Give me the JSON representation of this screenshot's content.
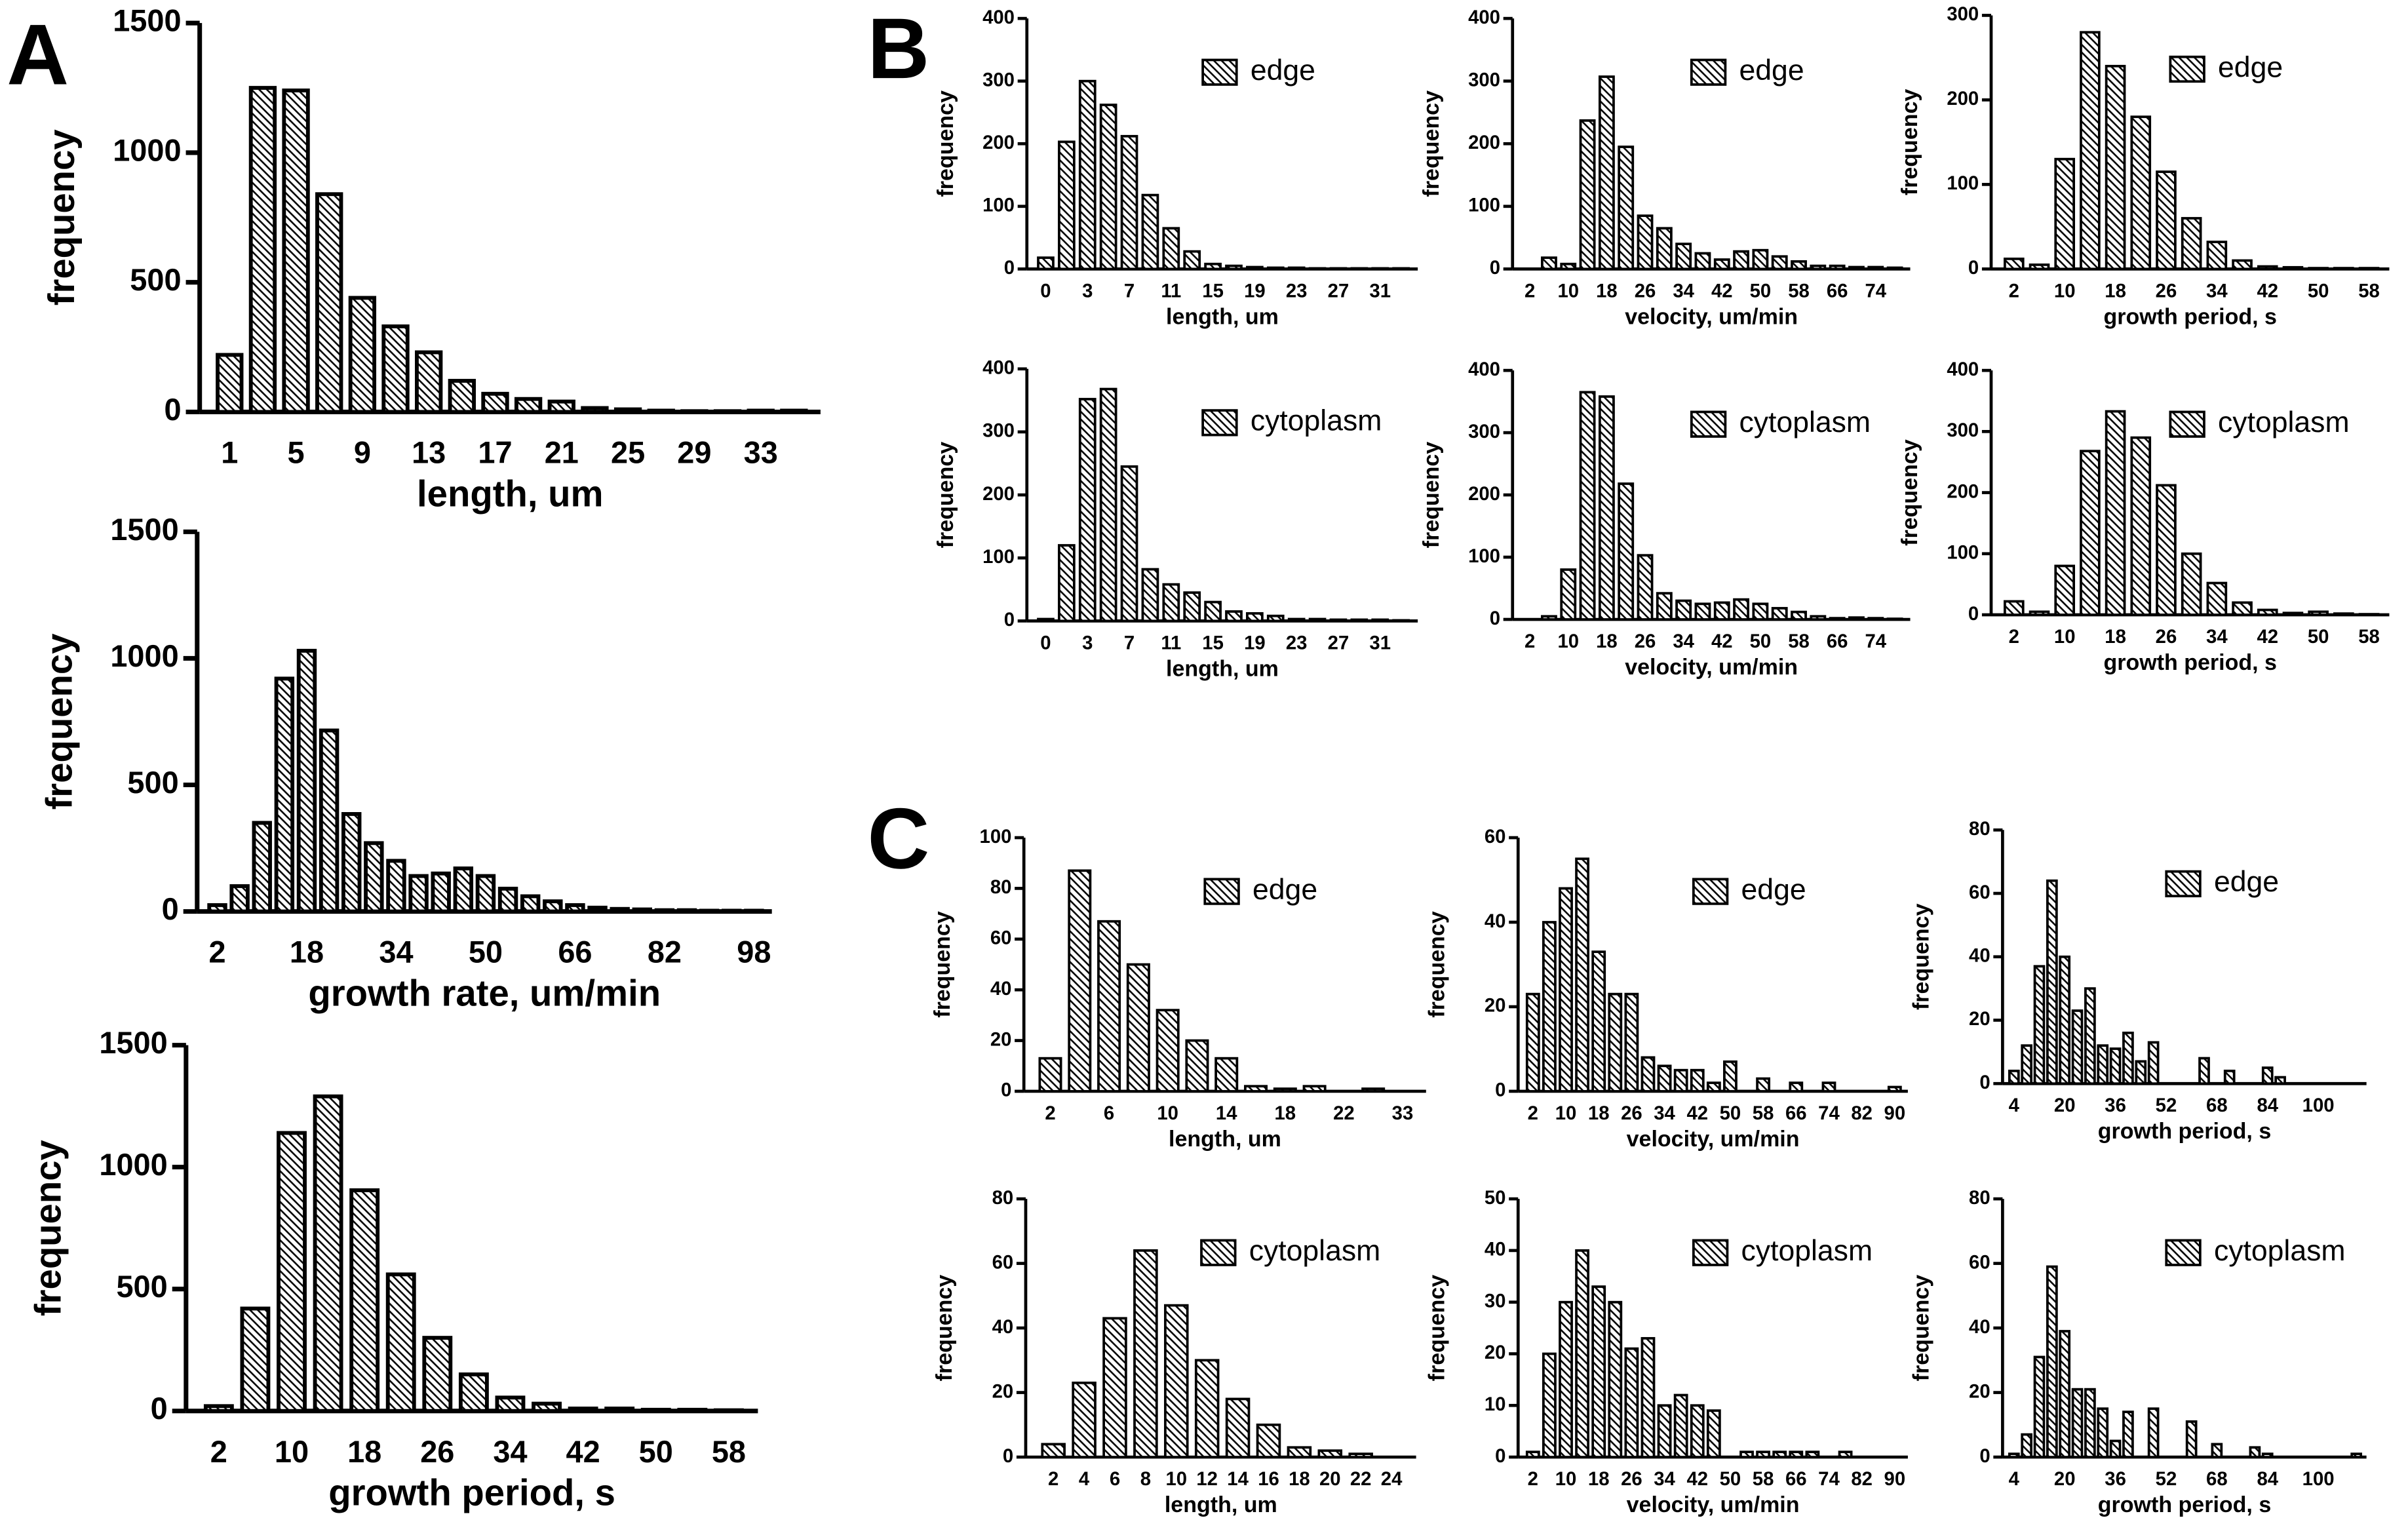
{
  "panel_labels": [
    "A",
    "B",
    "C"
  ],
  "chart_data": [
    {
      "type": "bar",
      "xlabel": "length, um",
      "ylabel": "frequency",
      "categories": [
        "1",
        null,
        "5",
        null,
        "9",
        null,
        "13",
        null,
        "17",
        null,
        "21",
        null,
        "25",
        null,
        "29",
        null,
        "33",
        null
      ],
      "values": [
        220,
        1250,
        1240,
        840,
        440,
        330,
        230,
        120,
        70,
        50,
        40,
        15,
        10,
        5,
        3,
        3,
        5,
        5
      ],
      "ylim": [
        0,
        1500
      ],
      "yticks": [
        0,
        500,
        1000,
        1500
      ]
    },
    {
      "type": "bar",
      "xlabel": "growth rate, um/min",
      "ylabel": "frequency",
      "categories": [
        "2",
        null,
        null,
        null,
        "18",
        null,
        null,
        null,
        "34",
        null,
        null,
        null,
        "50",
        null,
        null,
        null,
        "66",
        null,
        null,
        null,
        "82",
        null,
        null,
        null,
        "98"
      ],
      "values": [
        25,
        100,
        350,
        920,
        1030,
        715,
        385,
        270,
        200,
        140,
        150,
        170,
        140,
        90,
        60,
        40,
        25,
        15,
        10,
        8,
        5,
        5,
        3,
        3,
        3
      ],
      "ylim": [
        0,
        1500
      ],
      "yticks": [
        0,
        500,
        1000,
        1500
      ]
    },
    {
      "type": "bar",
      "xlabel": "growth period, s",
      "ylabel": "frequency",
      "categories": [
        "2",
        null,
        "10",
        null,
        "18",
        null,
        "26",
        null,
        "34",
        null,
        "42",
        null,
        "50",
        null,
        "58"
      ],
      "values": [
        20,
        420,
        1140,
        1290,
        905,
        560,
        300,
        150,
        55,
        30,
        10,
        10,
        5,
        5,
        3
      ],
      "ylim": [
        0,
        1500
      ],
      "yticks": [
        0,
        500,
        1000,
        1500
      ]
    },
    {
      "type": "bar",
      "xlabel": "length, um",
      "ylabel": "frequency",
      "categories": [
        "0",
        null,
        "3",
        null,
        "7",
        null,
        "11",
        null,
        "15",
        null,
        "19",
        null,
        "23",
        null,
        "27",
        null,
        "31",
        null
      ],
      "series": [
        {
          "name": "edge",
          "values": [
            18,
            203,
            300,
            262,
            212,
            118,
            65,
            28,
            8,
            5,
            3,
            2,
            2,
            1,
            1,
            1,
            1,
            1
          ]
        }
      ],
      "ylim": [
        0,
        400
      ],
      "yticks": [
        0,
        100,
        200,
        300,
        400
      ]
    },
    {
      "type": "bar",
      "xlabel": "velocity, um/min",
      "ylabel": "frequency",
      "categories": [
        "2",
        null,
        "10",
        null,
        "18",
        null,
        "26",
        null,
        "34",
        null,
        "42",
        null,
        "50",
        null,
        "58",
        null,
        "66",
        null,
        "74",
        null
      ],
      "series": [
        {
          "name": "edge",
          "values": [
            0,
            18,
            8,
            237,
            307,
            195,
            85,
            65,
            40,
            25,
            15,
            28,
            30,
            20,
            12,
            5,
            5,
            3,
            3,
            2
          ]
        }
      ],
      "ylim": [
        0,
        400
      ],
      "yticks": [
        0,
        100,
        200,
        300,
        400
      ]
    },
    {
      "type": "bar",
      "xlabel": "growth period, s",
      "ylabel": "frequency",
      "categories": [
        "2",
        null,
        "10",
        null,
        "18",
        null,
        "26",
        null,
        "34",
        null,
        "42",
        null,
        "50",
        null,
        "58"
      ],
      "series": [
        {
          "name": "edge",
          "values": [
            12,
            5,
            130,
            280,
            240,
            180,
            115,
            60,
            32,
            10,
            3,
            2,
            1,
            1,
            1
          ]
        }
      ],
      "ylim": [
        0,
        300
      ],
      "yticks": [
        0,
        100,
        200,
        300
      ]
    },
    {
      "type": "bar",
      "xlabel": "length, um",
      "ylabel": "frequency",
      "categories": [
        "0",
        null,
        "3",
        null,
        "7",
        null,
        "11",
        null,
        "15",
        null,
        "19",
        null,
        "23",
        null,
        "27",
        null,
        "31",
        null
      ],
      "series": [
        {
          "name": "cytoplasm",
          "values": [
            3,
            120,
            352,
            368,
            245,
            82,
            58,
            45,
            30,
            15,
            12,
            8,
            3,
            3,
            2,
            2,
            2,
            1
          ]
        }
      ],
      "ylim": [
        0,
        400
      ],
      "yticks": [
        0,
        100,
        200,
        300,
        400
      ]
    },
    {
      "type": "bar",
      "xlabel": "velocity, um/min",
      "ylabel": "frequency",
      "categories": [
        "2",
        null,
        "10",
        null,
        "18",
        null,
        "26",
        null,
        "34",
        null,
        "42",
        null,
        "50",
        null,
        "58",
        null,
        "66",
        null,
        "74",
        null
      ],
      "series": [
        {
          "name": "cytoplasm",
          "values": [
            0,
            5,
            80,
            365,
            358,
            218,
            103,
            42,
            30,
            25,
            27,
            32,
            25,
            18,
            12,
            5,
            2,
            3,
            2,
            1
          ]
        }
      ],
      "ylim": [
        0,
        400
      ],
      "yticks": [
        0,
        100,
        200,
        300,
        400
      ]
    },
    {
      "type": "bar",
      "xlabel": "growth period, s",
      "ylabel": "frequency",
      "categories": [
        "2",
        null,
        "10",
        null,
        "18",
        null,
        "26",
        null,
        "34",
        null,
        "42",
        null,
        "50",
        null,
        "58"
      ],
      "series": [
        {
          "name": "cytoplasm",
          "values": [
            22,
            5,
            80,
            268,
            333,
            290,
            212,
            100,
            52,
            20,
            8,
            3,
            5,
            2,
            1
          ]
        }
      ],
      "ylim": [
        0,
        400
      ],
      "yticks": [
        0,
        100,
        200,
        300,
        400
      ]
    },
    {
      "type": "bar",
      "xlabel": "length, um",
      "ylabel": "frequency",
      "categories": [
        "2",
        null,
        "6",
        null,
        "10",
        null,
        "14",
        null,
        "18",
        null,
        "22",
        null,
        "33"
      ],
      "series": [
        {
          "name": "edge",
          "values": [
            13,
            87,
            67,
            50,
            32,
            20,
            13,
            2,
            1,
            2,
            0,
            1,
            0
          ]
        }
      ],
      "ylim": [
        0,
        100
      ],
      "yticks": [
        0,
        20,
        40,
        60,
        80,
        100
      ]
    },
    {
      "type": "bar",
      "xlabel": "velocity, um/min",
      "ylabel": "frequency",
      "categories": [
        "2",
        null,
        "10",
        null,
        "18",
        null,
        "26",
        null,
        "34",
        null,
        "42",
        null,
        "50",
        null,
        "58",
        null,
        "66",
        null,
        "74",
        null,
        "82",
        null,
        "90"
      ],
      "series": [
        {
          "name": "edge",
          "values": [
            23,
            40,
            48,
            55,
            33,
            23,
            23,
            8,
            6,
            5,
            5,
            2,
            7,
            0,
            3,
            0,
            2,
            0,
            2,
            0,
            0,
            0,
            1
          ]
        }
      ],
      "ylim": [
        0,
        60
      ],
      "yticks": [
        0,
        20,
        40,
        60
      ]
    },
    {
      "type": "bar",
      "xlabel": "growth period, s",
      "ylabel": "frequency",
      "categories": [
        "4",
        null,
        null,
        null,
        "20",
        null,
        null,
        null,
        "36",
        null,
        null,
        null,
        "52",
        null,
        null,
        null,
        "68",
        null,
        null,
        null,
        "84",
        null,
        null,
        null,
        "100",
        null,
        null,
        null
      ],
      "series": [
        {
          "name": "edge",
          "values": [
            4,
            12,
            37,
            64,
            40,
            23,
            30,
            12,
            11,
            16,
            7,
            13,
            0,
            0,
            0,
            8,
            0,
            4,
            0,
            0,
            5,
            2,
            0,
            0,
            0,
            0,
            0,
            0
          ]
        }
      ],
      "ylim": [
        0,
        80
      ],
      "yticks": [
        0,
        20,
        40,
        60,
        80
      ]
    },
    {
      "type": "bar",
      "xlabel": "length, um",
      "ylabel": "frequency",
      "categories": [
        "2",
        "4",
        "6",
        "8",
        "10",
        "12",
        "14",
        "16",
        "18",
        "20",
        "22",
        "24"
      ],
      "series": [
        {
          "name": "cytoplasm",
          "values": [
            4,
            23,
            43,
            64,
            47,
            30,
            18,
            10,
            3,
            2,
            1,
            0
          ]
        }
      ],
      "ylim": [
        0,
        80
      ],
      "yticks": [
        0,
        20,
        40,
        60,
        80
      ]
    },
    {
      "type": "bar",
      "xlabel": "velocity, um/min",
      "ylabel": "frequency",
      "categories": [
        "2",
        null,
        "10",
        null,
        "18",
        null,
        "26",
        null,
        "34",
        null,
        "42",
        null,
        "50",
        null,
        "58",
        null,
        "66",
        null,
        "74",
        null,
        "82",
        null,
        "90"
      ],
      "series": [
        {
          "name": "cytoplasm",
          "values": [
            1,
            20,
            30,
            40,
            33,
            30,
            21,
            23,
            10,
            12,
            10,
            9,
            0,
            1,
            1,
            1,
            1,
            1,
            0,
            1,
            0,
            0,
            0
          ]
        }
      ],
      "ylim": [
        0,
        50
      ],
      "yticks": [
        0,
        10,
        20,
        30,
        40,
        50
      ]
    },
    {
      "type": "bar",
      "xlabel": "growth period, s",
      "ylabel": "frequency",
      "categories": [
        "4",
        null,
        null,
        null,
        "20",
        null,
        null,
        null,
        "36",
        null,
        null,
        null,
        "52",
        null,
        null,
        null,
        "68",
        null,
        null,
        null,
        "84",
        null,
        null,
        null,
        "100",
        null,
        null,
        null
      ],
      "series": [
        {
          "name": "cytoplasm",
          "values": [
            1,
            7,
            31,
            59,
            39,
            21,
            21,
            15,
            5,
            14,
            0,
            15,
            0,
            0,
            11,
            0,
            4,
            0,
            0,
            3,
            1,
            0,
            0,
            0,
            0,
            0,
            0,
            1
          ]
        }
      ],
      "ylim": [
        0,
        80
      ],
      "yticks": [
        0,
        20,
        40,
        60,
        80
      ]
    }
  ]
}
